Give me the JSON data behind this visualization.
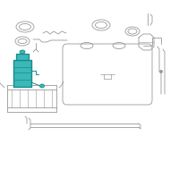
{
  "bg_color": "#ffffff",
  "line_color": "#999999",
  "highlight_color": "#1a8a8a",
  "highlight_fill": "#3bb8b8",
  "fig_width": 2.0,
  "fig_height": 2.0,
  "dpi": 100
}
